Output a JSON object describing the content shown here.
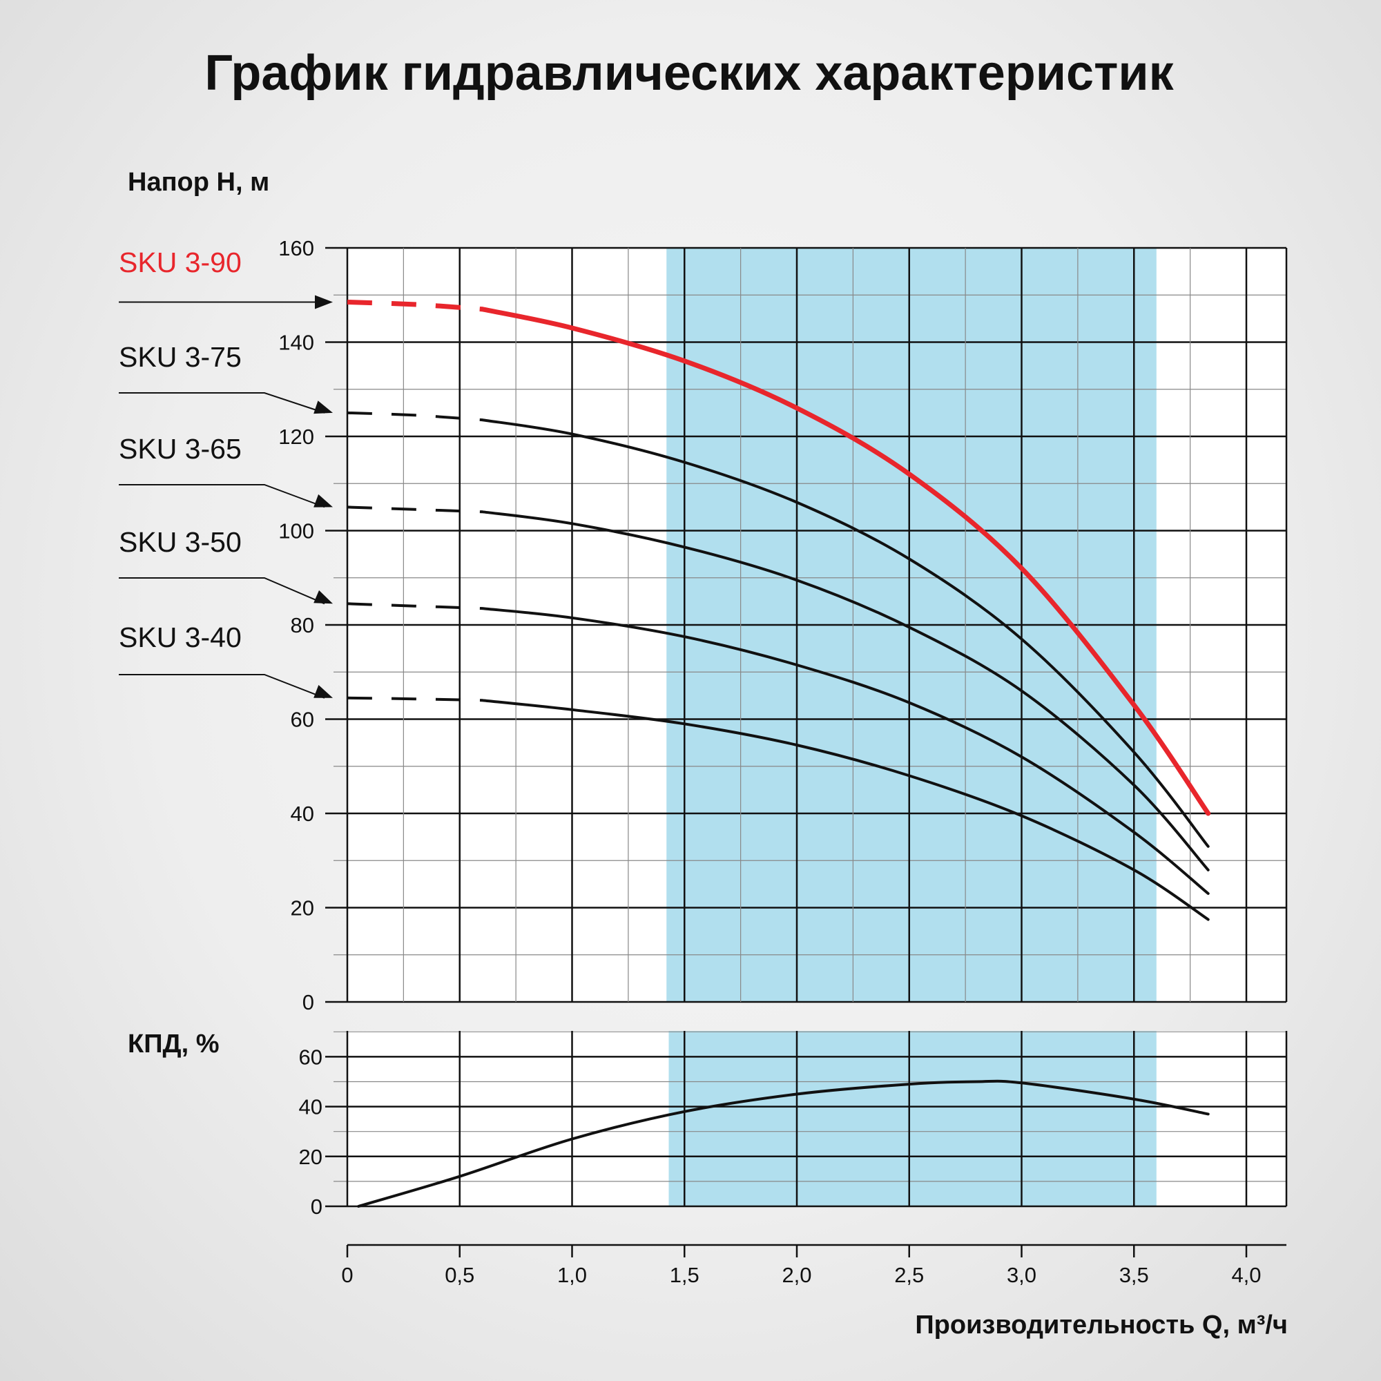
{
  "chart_data": [
    {
      "type": "line",
      "title": "График гидравлических характеристик",
      "ylabel": "Напор H, м",
      "xlabel": "Производительность Q, м³/ч",
      "xlim": [
        0,
        4.2
      ],
      "ylim": [
        0,
        160
      ],
      "xticks": [
        0,
        0.5,
        1.0,
        1.5,
        2.0,
        2.5,
        3.0,
        3.5,
        4.0
      ],
      "xtick_labels": [
        "0",
        "0,5",
        "1,0",
        "1,5",
        "2,0",
        "2,5",
        "3,0",
        "3,5",
        "4,0"
      ],
      "yticks": [
        0,
        20,
        40,
        60,
        80,
        100,
        120,
        140,
        160
      ],
      "ytick_labels": [
        "0",
        "20",
        "40",
        "60",
        "80",
        "100",
        "120",
        "140",
        "160"
      ],
      "grid": true,
      "highlight_band_x": [
        1.42,
        3.6
      ],
      "highlight_color": "#b1dfee",
      "dashed_segment_x": [
        0,
        0.6
      ],
      "series": [
        {
          "name": "SKU 3-90",
          "color": "#e8262c",
          "x": [
            0,
            0.3,
            0.6,
            1.0,
            1.5,
            2.0,
            2.5,
            3.0,
            3.5,
            3.83
          ],
          "y": [
            148.5,
            148,
            147,
            143,
            136,
            126,
            112,
            92,
            63,
            40
          ]
        },
        {
          "name": "SKU 3-75",
          "color": "#111111",
          "x": [
            0,
            0.3,
            0.6,
            1.0,
            1.5,
            2.0,
            2.5,
            3.0,
            3.5,
            3.83
          ],
          "y": [
            125,
            124.5,
            123.5,
            120.5,
            114.5,
            106,
            94,
            77,
            53,
            33
          ]
        },
        {
          "name": "SKU 3-65",
          "color": "#111111",
          "x": [
            0,
            0.3,
            0.6,
            1.0,
            1.5,
            2.0,
            2.5,
            3.0,
            3.5,
            3.83
          ],
          "y": [
            105,
            104.5,
            104,
            101.5,
            96.5,
            89.5,
            79.5,
            66,
            46,
            28
          ]
        },
        {
          "name": "SKU 3-50",
          "color": "#111111",
          "x": [
            0,
            0.3,
            0.6,
            1.0,
            1.5,
            2.0,
            2.5,
            3.0,
            3.5,
            3.83
          ],
          "y": [
            84.5,
            84,
            83.5,
            81.5,
            77.5,
            71.5,
            63.5,
            52,
            36,
            23
          ]
        },
        {
          "name": "SKU 3-40",
          "color": "#111111",
          "x": [
            0,
            0.3,
            0.6,
            1.0,
            1.5,
            2.0,
            2.5,
            3.0,
            3.5,
            3.83
          ],
          "y": [
            64.5,
            64.3,
            64,
            62,
            59,
            54.5,
            48,
            39.5,
            28,
            17.5
          ]
        }
      ]
    },
    {
      "type": "line",
      "ylabel": "КПД, %",
      "xlim": [
        0,
        4.2
      ],
      "ylim": [
        0,
        70
      ],
      "yticks": [
        0,
        20,
        40,
        60
      ],
      "ytick_labels": [
        "0",
        "20",
        "40",
        "60"
      ],
      "grid": true,
      "highlight_band_x": [
        1.43,
        3.6
      ],
      "series": [
        {
          "color": "#111111",
          "x": [
            0.05,
            0.5,
            1.0,
            1.5,
            2.0,
            2.5,
            2.8,
            3.0,
            3.5,
            3.83
          ],
          "y": [
            0,
            12,
            27,
            38,
            45,
            49,
            50,
            49.5,
            43,
            37
          ]
        }
      ]
    }
  ]
}
